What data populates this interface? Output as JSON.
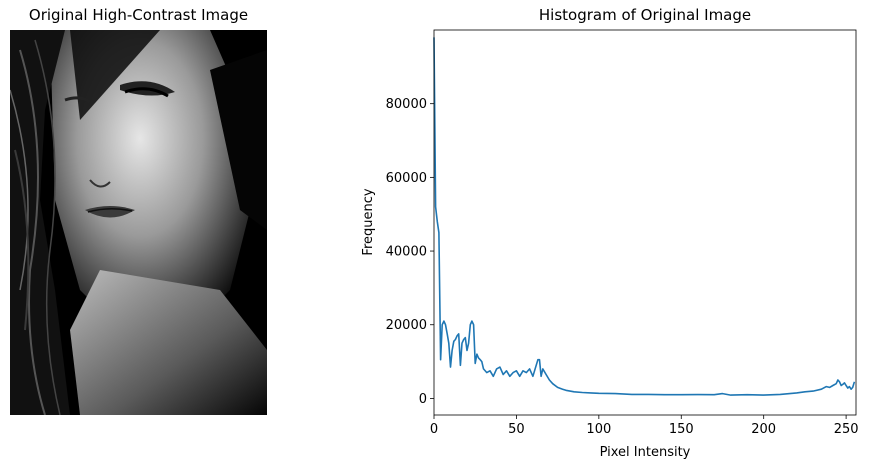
{
  "left_panel": {
    "title": "Original High-Contrast Image"
  },
  "right_panel": {
    "title": "Histogram of Original Image"
  },
  "chart_data": {
    "type": "line",
    "title": "Histogram of Original Image",
    "xlabel": "Pixel Intensity",
    "ylabel": "Frequency",
    "xlim": [
      0,
      256
    ],
    "ylim": [
      -4500,
      100000
    ],
    "xticks": [
      0,
      50,
      100,
      150,
      200,
      250
    ],
    "yticks": [
      0,
      20000,
      40000,
      60000,
      80000
    ],
    "grid": false,
    "color": "#1f77b4",
    "series": [
      {
        "x": [
          0,
          1,
          2,
          3,
          4,
          5,
          6,
          7,
          8,
          9,
          10,
          11,
          12,
          13,
          14,
          15,
          16,
          17,
          18,
          19,
          20,
          21,
          22,
          23,
          24,
          25,
          26,
          27,
          28,
          29,
          30,
          32,
          34,
          36,
          38,
          40,
          42,
          44,
          46,
          48,
          50,
          52,
          54,
          56,
          58,
          60,
          62,
          63,
          64,
          65,
          66,
          68,
          70,
          72,
          75,
          78,
          80,
          85,
          90,
          95,
          100,
          110,
          120,
          130,
          140,
          150,
          160,
          170,
          175,
          180,
          190,
          200,
          210,
          220,
          225,
          230,
          235,
          238,
          240,
          242,
          244,
          245,
          246,
          247,
          248,
          249,
          250,
          251,
          252,
          253,
          254,
          255
        ],
        "y": [
          98000,
          52000,
          48000,
          45000,
          10500,
          20000,
          21000,
          20000,
          17500,
          15000,
          8500,
          13000,
          15500,
          16000,
          17000,
          17500,
          9000,
          15000,
          16000,
          16500,
          13000,
          15000,
          20000,
          21000,
          20000,
          9500,
          12000,
          11000,
          10500,
          10000,
          8000,
          7000,
          7500,
          6000,
          8000,
          8500,
          6500,
          7500,
          6000,
          7000,
          7500,
          6000,
          7500,
          7000,
          8000,
          6000,
          9000,
          10500,
          10500,
          6000,
          8000,
          6500,
          5000,
          4000,
          3000,
          2500,
          2200,
          1800,
          1600,
          1500,
          1400,
          1300,
          1100,
          1100,
          1000,
          1000,
          1050,
          1000,
          1300,
          900,
          1000,
          900,
          1100,
          1500,
          1800,
          2000,
          2500,
          3200,
          3000,
          3500,
          4000,
          5000,
          4500,
          3500,
          3800,
          4200,
          3500,
          2800,
          3200,
          2500,
          3000,
          4500
        ]
      }
    ]
  }
}
